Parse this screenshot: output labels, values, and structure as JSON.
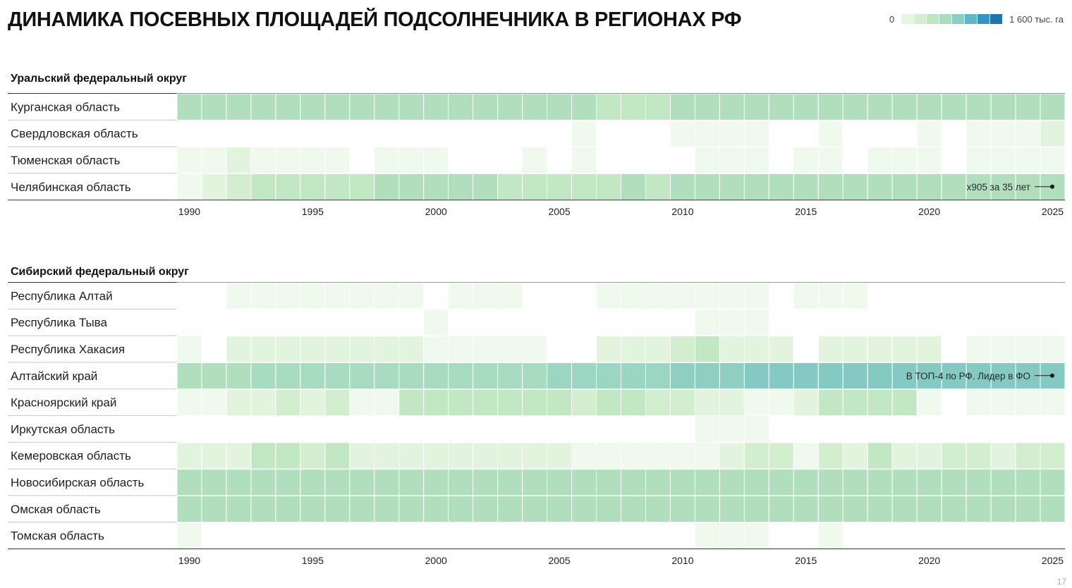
{
  "title": "ДИНАМИКА ПОСЕВНЫХ ПЛОЩАДЕЙ ПОДСОЛНЕЧНИКА В РЕГИОНАХ РФ",
  "legend": {
    "min_label": "0",
    "max_label": "1 600 тыс. га",
    "colors": [
      "#e6f5e2",
      "#d3eed0",
      "#bfe6c1",
      "#a7dcbf",
      "#8ccfc2",
      "#5eb6c6",
      "#3694c0",
      "#1f76ae"
    ]
  },
  "page_number": "17",
  "colors": {
    "white": "#ffffff",
    "l1": "#f0f9ed",
    "l2": "#e3f4de",
    "l3": "#d3eece",
    "l4": "#c2e7c3",
    "l5": "#b1dfbd",
    "l6": "#a7dcc0",
    "l7": "#9ad6c2",
    "l8": "#8fcfc2",
    "l9": "#84cac3"
  },
  "chart_data": [
    {
      "type": "heatmap",
      "title": "Уральский федеральный округ",
      "x": [
        1990,
        1991,
        1992,
        1993,
        1994,
        1995,
        1996,
        1997,
        1998,
        1999,
        2000,
        2001,
        2002,
        2003,
        2004,
        2005,
        2006,
        2007,
        2008,
        2009,
        2010,
        2011,
        2012,
        2013,
        2014,
        2015,
        2016,
        2017,
        2018,
        2019,
        2020,
        2021,
        2022,
        2023,
        2024,
        2025
      ],
      "x_tick_labels": [
        "1990",
        "1995",
        "2000",
        "2005",
        "2010",
        "2015",
        "2020",
        "2025"
      ],
      "rows": [
        {
          "name": "Курганская область",
          "levels": [
            5,
            5,
            5,
            5,
            5,
            5,
            5,
            5,
            5,
            5,
            5,
            5,
            5,
            5,
            5,
            5,
            5,
            4,
            4,
            4,
            5,
            5,
            5,
            5,
            5,
            5,
            5,
            5,
            5,
            5,
            5,
            5,
            5,
            5,
            5,
            5
          ]
        },
        {
          "name": "Свердловская область",
          "levels": [
            0,
            0,
            0,
            0,
            0,
            0,
            0,
            0,
            0,
            0,
            0,
            0,
            0,
            0,
            0,
            0,
            1,
            0,
            0,
            0,
            1,
            1,
            1,
            1,
            0,
            0,
            1,
            0,
            0,
            0,
            1,
            0,
            1,
            1,
            1,
            2
          ]
        },
        {
          "name": "Тюменская область",
          "levels": [
            1,
            1,
            2,
            1,
            1,
            1,
            1,
            0,
            1,
            1,
            1,
            0,
            0,
            0,
            1,
            0,
            1,
            0,
            0,
            0,
            0,
            1,
            1,
            1,
            0,
            1,
            1,
            0,
            1,
            1,
            1,
            0,
            1,
            1,
            1,
            1
          ]
        },
        {
          "name": "Челябинская область",
          "levels": [
            1,
            2,
            3,
            4,
            4,
            4,
            4,
            4,
            5,
            5,
            5,
            5,
            5,
            4,
            4,
            4,
            4,
            4,
            5,
            4,
            5,
            5,
            5,
            5,
            5,
            5,
            5,
            5,
            5,
            5,
            5,
            5,
            5,
            5,
            5,
            5
          ]
        }
      ],
      "annotations": [
        {
          "row": "Челябинская область",
          "text": "x905 за 35 лет"
        }
      ]
    },
    {
      "type": "heatmap",
      "title": "Сибирский федеральный округ",
      "x": [
        1990,
        1991,
        1992,
        1993,
        1994,
        1995,
        1996,
        1997,
        1998,
        1999,
        2000,
        2001,
        2002,
        2003,
        2004,
        2005,
        2006,
        2007,
        2008,
        2009,
        2010,
        2011,
        2012,
        2013,
        2014,
        2015,
        2016,
        2017,
        2018,
        2019,
        2020,
        2021,
        2022,
        2023,
        2024,
        2025
      ],
      "x_tick_labels": [
        "1990",
        "1995",
        "2000",
        "2005",
        "2010",
        "2015",
        "2020",
        "2025"
      ],
      "rows": [
        {
          "name": "Республика Алтай",
          "levels": [
            0,
            0,
            1,
            1,
            1,
            1,
            1,
            1,
            1,
            1,
            0,
            1,
            1,
            1,
            0,
            0,
            0,
            1,
            1,
            1,
            1,
            1,
            1,
            1,
            0,
            1,
            1,
            1,
            0,
            0,
            0,
            0,
            0,
            0,
            0,
            0
          ]
        },
        {
          "name": "Республика Тыва",
          "levels": [
            0,
            0,
            0,
            0,
            0,
            0,
            0,
            0,
            0,
            0,
            1,
            0,
            0,
            0,
            0,
            0,
            0,
            0,
            0,
            0,
            0,
            1,
            1,
            1,
            0,
            0,
            0,
            0,
            0,
            0,
            0,
            0,
            0,
            0,
            0,
            0
          ]
        },
        {
          "name": "Республика Хакасия",
          "levels": [
            1,
            0,
            2,
            2,
            2,
            2,
            2,
            2,
            2,
            2,
            1,
            1,
            1,
            1,
            1,
            0,
            0,
            2,
            2,
            2,
            3,
            4,
            2,
            2,
            2,
            0,
            2,
            2,
            2,
            2,
            2,
            0,
            1,
            1,
            1,
            1
          ]
        },
        {
          "name": "Алтайский край",
          "levels": [
            5,
            5,
            5,
            6,
            6,
            6,
            6,
            6,
            6,
            6,
            6,
            6,
            6,
            6,
            6,
            7,
            7,
            7,
            7,
            7,
            8,
            8,
            8,
            9,
            9,
            9,
            9,
            9,
            9,
            9,
            9,
            9,
            9,
            9,
            9,
            9
          ]
        },
        {
          "name": "Красноярский край",
          "levels": [
            1,
            1,
            2,
            2,
            3,
            2,
            3,
            1,
            1,
            4,
            4,
            4,
            4,
            4,
            4,
            4,
            3,
            4,
            4,
            3,
            3,
            2,
            2,
            1,
            1,
            2,
            4,
            4,
            4,
            4,
            1,
            0,
            1,
            1,
            1,
            1
          ]
        },
        {
          "name": "Иркутская область",
          "levels": [
            0,
            0,
            0,
            0,
            0,
            0,
            0,
            0,
            0,
            0,
            0,
            0,
            0,
            0,
            0,
            0,
            0,
            0,
            0,
            0,
            0,
            1,
            1,
            1,
            0,
            0,
            0,
            0,
            0,
            0,
            0,
            0,
            0,
            0,
            0,
            0
          ]
        },
        {
          "name": "Кемеровская область",
          "levels": [
            2,
            2,
            2,
            4,
            4,
            3,
            4,
            2,
            2,
            2,
            2,
            2,
            2,
            2,
            2,
            2,
            1,
            1,
            1,
            1,
            1,
            1,
            2,
            3,
            3,
            1,
            3,
            2,
            4,
            2,
            2,
            3,
            3,
            2,
            3,
            3
          ]
        },
        {
          "name": "Новосибирская область",
          "levels": [
            5,
            5,
            5,
            5,
            5,
            5,
            5,
            5,
            5,
            5,
            5,
            5,
            5,
            5,
            5,
            5,
            5,
            5,
            5,
            5,
            5,
            5,
            5,
            5,
            5,
            5,
            5,
            5,
            5,
            5,
            5,
            5,
            5,
            5,
            5,
            5
          ]
        },
        {
          "name": "Омская область",
          "levels": [
            5,
            5,
            5,
            5,
            5,
            5,
            5,
            5,
            5,
            5,
            5,
            5,
            5,
            5,
            5,
            5,
            5,
            5,
            5,
            5,
            5,
            5,
            5,
            5,
            5,
            5,
            5,
            5,
            5,
            5,
            5,
            5,
            5,
            5,
            5,
            5
          ]
        },
        {
          "name": "Томская область",
          "levels": [
            1,
            0,
            0,
            0,
            0,
            0,
            0,
            0,
            0,
            0,
            0,
            0,
            0,
            0,
            0,
            0,
            0,
            0,
            0,
            0,
            0,
            1,
            1,
            1,
            0,
            0,
            1,
            0,
            0,
            0,
            0,
            0,
            0,
            0,
            0,
            0
          ]
        }
      ],
      "annotations": [
        {
          "row": "Алтайский край",
          "text": "В ТОП-4 по РФ. Лидер в ФО"
        }
      ]
    }
  ]
}
